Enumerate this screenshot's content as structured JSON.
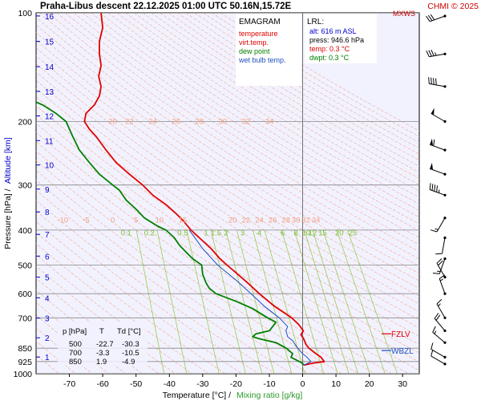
{
  "chart_data": {
    "type": "line",
    "title": "Praha-Libus   descent   22.12.2025 01:00 UTC  50.16N,15.72E",
    "copyright": "CHMI © 2025",
    "wind_label": "MXWS",
    "xlabel": "Temperature [°C]  /",
    "xlabel2": "Mixing ratio [g/kg]",
    "ylabel": "Pressure [hPa]  /",
    "ylabel2": "Altitude [km]",
    "xlim": [
      -80,
      35
    ],
    "ylim": [
      1000,
      100
    ],
    "y_scale": "log",
    "x_ticks": [
      -70,
      -60,
      -50,
      -40,
      -30,
      -20,
      -10,
      0,
      10,
      20,
      30
    ],
    "p_ticks": [
      100,
      200,
      300,
      400,
      500,
      600,
      700,
      850,
      925,
      1000
    ],
    "km_ticks": [
      {
        "km": "1",
        "p": 899
      },
      {
        "km": "2",
        "p": 795
      },
      {
        "km": "3",
        "p": 701
      },
      {
        "km": "4",
        "p": 616
      },
      {
        "km": "5",
        "p": 540
      },
      {
        "km": "6",
        "p": 472
      },
      {
        "km": "7",
        "p": 411
      },
      {
        "km": "8",
        "p": 356
      },
      {
        "km": "9",
        "p": 308
      },
      {
        "km": "10",
        "p": 264
      },
      {
        "km": "11",
        "p": 226
      },
      {
        "km": "12",
        "p": 193
      },
      {
        "km": "13",
        "p": 165
      },
      {
        "km": "14",
        "p": 141
      },
      {
        "km": "15",
        "p": 120
      },
      {
        "km": "16",
        "p": 102
      }
    ],
    "zero_isotherm": 0,
    "legend": {
      "title": "EMAGRAM",
      "items": [
        {
          "label": "temperature",
          "color": "#e00000"
        },
        {
          "label": "virt.temp.",
          "color": "#e00000"
        },
        {
          "label": "dew point",
          "color": "#008000"
        },
        {
          "label": "wet bulb temp.",
          "color": "#2050c0"
        }
      ]
    },
    "lrl": {
      "title": "LRL:",
      "alt": "alt: 616 m ASL",
      "press": "press: 946.6 hPa",
      "temp": "temp: 0.3 °C",
      "dwpt": "dwpt: 0.3 °C"
    },
    "levels_table": {
      "headers": [
        "p [hPa]",
        "T",
        "Td [°C]"
      ],
      "rows": [
        [
          "500",
          "-22.7",
          "-30.3"
        ],
        [
          "700",
          "-3.3",
          "-10.5"
        ],
        [
          "850",
          "1.9",
          "-4.9"
        ]
      ]
    },
    "fzlv": {
      "label": "FZLV",
      "p": 775,
      "color": "#e00000"
    },
    "wbzl": {
      "label": "WBZL",
      "p": 862,
      "color": "#2050c0"
    },
    "theta_labels_upper": {
      "p": 200,
      "values": [
        "20",
        "22",
        "24",
        "26",
        "28",
        "30",
        "32",
        "34"
      ],
      "temps": [
        -57,
        -52,
        -45,
        -38,
        -31,
        -24,
        -17,
        -10
      ]
    },
    "theta_labels_lower": {
      "p": 375,
      "values": [
        "-10",
        "-5",
        "0",
        "5",
        "10",
        "15",
        "20",
        "22",
        "24",
        "26",
        "28",
        "30",
        "32",
        "34"
      ],
      "temps": [
        -72,
        -65,
        -57,
        -50,
        -43,
        -36,
        -21,
        -17,
        -13,
        -9,
        -5,
        -2,
        1,
        4
      ]
    },
    "mixing_ratio": {
      "label_p": 395,
      "values": [
        "0.1",
        "0.2",
        "0.5",
        "1",
        "1.5",
        "2",
        "3",
        "4",
        "6",
        "8",
        "10",
        "12",
        "15",
        "20",
        "25"
      ],
      "label_temps": [
        -53,
        -46,
        -36,
        -29,
        -26,
        -23,
        -18,
        -13,
        -6,
        -2,
        1,
        3,
        6,
        11,
        15
      ]
    },
    "series": [
      {
        "name": "temperature",
        "color": "#e00000",
        "points": [
          [
            100,
            -60.5
          ],
          [
            110,
            -60
          ],
          [
            120,
            -61
          ],
          [
            130,
            -61
          ],
          [
            140,
            -60.5
          ],
          [
            150,
            -61.2
          ],
          [
            160,
            -60.5
          ],
          [
            170,
            -61
          ],
          [
            180,
            -62.5
          ],
          [
            190,
            -65
          ],
          [
            200,
            -65.5
          ],
          [
            210,
            -64
          ],
          [
            220,
            -62
          ],
          [
            240,
            -59
          ],
          [
            260,
            -56
          ],
          [
            280,
            -52
          ],
          [
            300,
            -48
          ],
          [
            320,
            -45
          ],
          [
            340,
            -41
          ],
          [
            360,
            -38
          ],
          [
            380,
            -35.5
          ],
          [
            400,
            -33.5
          ],
          [
            420,
            -31
          ],
          [
            450,
            -27.5
          ],
          [
            480,
            -24.8
          ],
          [
            500,
            -22.7
          ],
          [
            530,
            -19.5
          ],
          [
            560,
            -16.5
          ],
          [
            600,
            -13
          ],
          [
            650,
            -8.5
          ],
          [
            700,
            -3.3
          ],
          [
            730,
            -1.2
          ],
          [
            760,
            0.2
          ],
          [
            780,
            -0.5
          ],
          [
            800,
            0.3
          ],
          [
            830,
            1.0
          ],
          [
            850,
            1.9
          ],
          [
            880,
            4
          ],
          [
            900,
            5.5
          ],
          [
            925,
            6.5
          ],
          [
            935,
            3
          ],
          [
            946.6,
            0.3
          ]
        ]
      },
      {
        "name": "dew point",
        "color": "#008000",
        "points": [
          [
            175,
            -81
          ],
          [
            180,
            -78
          ],
          [
            190,
            -74
          ],
          [
            200,
            -71
          ],
          [
            210,
            -70
          ],
          [
            220,
            -69
          ],
          [
            240,
            -67
          ],
          [
            260,
            -64
          ],
          [
            280,
            -61
          ],
          [
            300,
            -57
          ],
          [
            310,
            -55
          ],
          [
            330,
            -53
          ],
          [
            350,
            -50
          ],
          [
            370,
            -47.5
          ],
          [
            390,
            -43.5
          ],
          [
            400,
            -41
          ],
          [
            420,
            -38.5
          ],
          [
            440,
            -37
          ],
          [
            460,
            -35
          ],
          [
            480,
            -33
          ],
          [
            500,
            -30.3
          ],
          [
            530,
            -30
          ],
          [
            560,
            -29
          ],
          [
            580,
            -28
          ],
          [
            600,
            -26
          ],
          [
            630,
            -20
          ],
          [
            660,
            -15
          ],
          [
            700,
            -10.5
          ],
          [
            720,
            -8
          ],
          [
            740,
            -9
          ],
          [
            760,
            -10
          ],
          [
            775,
            -14
          ],
          [
            790,
            -15
          ],
          [
            800,
            -13
          ],
          [
            820,
            -8
          ],
          [
            850,
            -4.9
          ],
          [
            880,
            -3
          ],
          [
            900,
            -3.5
          ],
          [
            925,
            -1
          ],
          [
            935,
            0
          ],
          [
            946.6,
            0.3
          ]
        ]
      },
      {
        "name": "wet bulb temp.",
        "color": "#2050c0",
        "points": [
          [
            400,
            -34
          ],
          [
            450,
            -30
          ],
          [
            500,
            -25.5
          ],
          [
            550,
            -20
          ],
          [
            600,
            -15.5
          ],
          [
            650,
            -11.5
          ],
          [
            700,
            -7
          ],
          [
            740,
            -4.5
          ],
          [
            760,
            -5
          ],
          [
            790,
            -4.5
          ],
          [
            810,
            -3
          ],
          [
            850,
            -1.5
          ],
          [
            880,
            0
          ],
          [
            900,
            1.3
          ],
          [
            925,
            2.5
          ],
          [
            935,
            1.5
          ],
          [
            946.6,
            0.3
          ]
        ]
      }
    ],
    "wind_barbs": [
      {
        "p": 100,
        "dir": 250,
        "kt": 30
      },
      {
        "p": 130,
        "dir": 260,
        "kt": 35
      },
      {
        "p": 160,
        "dir": 280,
        "kt": 40
      },
      {
        "p": 200,
        "dir": 300,
        "kt": 50
      },
      {
        "p": 240,
        "dir": 290,
        "kt": 60
      },
      {
        "p": 280,
        "dir": 290,
        "kt": 50
      },
      {
        "p": 320,
        "dir": 290,
        "kt": 45
      },
      {
        "p": 370,
        "dir": 210,
        "kt": 15
      },
      {
        "p": 420,
        "dir": 190,
        "kt": 10
      },
      {
        "p": 480,
        "dir": 200,
        "kt": 15
      },
      {
        "p": 540,
        "dir": 330,
        "kt": 20
      },
      {
        "p": 600,
        "dir": 340,
        "kt": 15
      },
      {
        "p": 700,
        "dir": 330,
        "kt": 15
      },
      {
        "p": 760,
        "dir": 320,
        "kt": 20
      },
      {
        "p": 820,
        "dir": 310,
        "kt": 15
      },
      {
        "p": 900,
        "dir": 300,
        "kt": 10
      },
      {
        "p": 940,
        "dir": 300,
        "kt": 10
      }
    ]
  }
}
